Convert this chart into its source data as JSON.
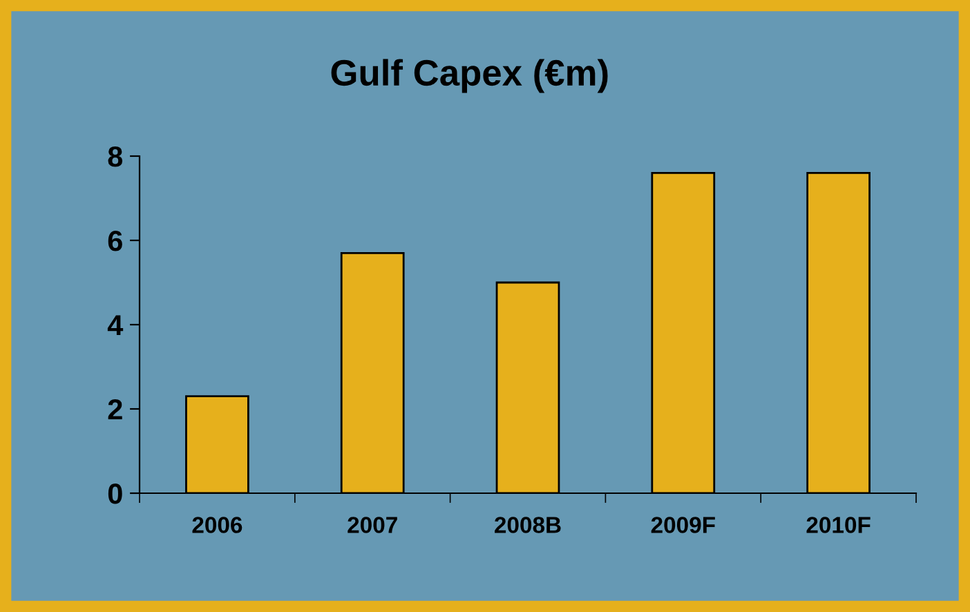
{
  "chart_data": {
    "type": "bar",
    "title": "Gulf Capex (€m)",
    "categories": [
      "2006",
      "2007",
      "2008B",
      "2009F",
      "2010F"
    ],
    "values": [
      2.3,
      5.7,
      5.0,
      7.6,
      7.6
    ],
    "color": "#e6b01c",
    "ylim": [
      0,
      8
    ],
    "yticks": [
      0,
      2,
      4,
      6,
      8
    ]
  }
}
